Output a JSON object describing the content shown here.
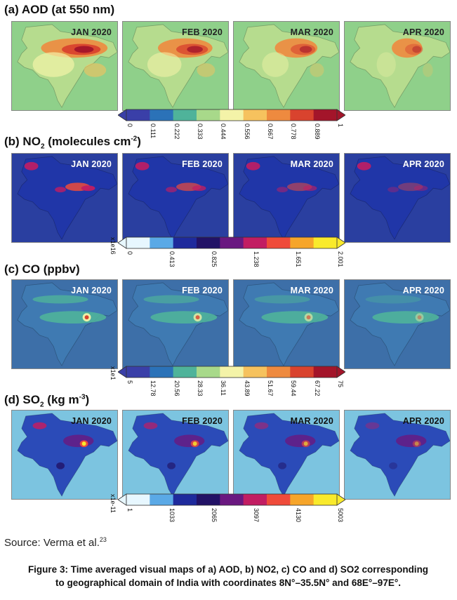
{
  "panels": [
    {
      "id": "aod",
      "title_prefix": "(a) AOD (at 550 nm)",
      "title_html": "",
      "bg": "#8fd08a",
      "label_color": "#222222",
      "months": [
        "JAN 2020",
        "FEB 2020",
        "MAR 2020",
        "APR 2020"
      ],
      "colorbar": {
        "colors": [
          "#3a3fa8",
          "#2b72b8",
          "#4fb39a",
          "#a8d98a",
          "#f4f3a8",
          "#f6c25e",
          "#ee8a3f",
          "#d9432e",
          "#a3152a"
        ],
        "ticks": [
          "0",
          "0.111",
          "0.222",
          "0.333",
          "0.444",
          "0.556",
          "0.667",
          "0.778",
          "0.889",
          "1"
        ],
        "unit": ""
      }
    },
    {
      "id": "no2",
      "title_prefix": "(b) NO",
      "title_sub": "2",
      "title_rest": " (molecules cm",
      "title_sup": "-2",
      "title_end": ")",
      "bg": "#2a3fa0",
      "label_color": "#ffffff",
      "months": [
        "JAN 2020",
        "FEB 2020",
        "MAR 2020",
        "APR 2020"
      ],
      "colorbar": {
        "colors": [
          "#e7f7ff",
          "#5aa9e6",
          "#1e2a9c",
          "#221266",
          "#6a1880",
          "#c21d62",
          "#ef4b3a",
          "#f6a52a",
          "#f9ea2c"
        ],
        "ticks": [
          "0",
          "0.413",
          "0.825",
          "1.238",
          "1.651",
          "2.001"
        ],
        "unit": "x1e16"
      }
    },
    {
      "id": "co",
      "title_prefix": "(c) CO (ppbv)",
      "bg": "#3d6fa8",
      "label_color": "#ffffff",
      "months": [
        "JAN 2020",
        "FEB 2020",
        "MAR 2020",
        "APR 2020"
      ],
      "colorbar": {
        "colors": [
          "#3a3fa8",
          "#2b72b8",
          "#4fb39a",
          "#a8d98a",
          "#f4f3a8",
          "#f6c25e",
          "#ee8a3f",
          "#d9432e",
          "#a3152a"
        ],
        "ticks": [
          "5",
          "12.78",
          "20.56",
          "28.33",
          "36.11",
          "43.89",
          "51.67",
          "59.44",
          "67.22",
          "75"
        ],
        "unit": "x1e1"
      }
    },
    {
      "id": "so2",
      "title_prefix": "(d) SO",
      "title_sub": "2",
      "title_rest": " (kg m",
      "title_sup": "-3",
      "title_end": ")",
      "bg": "#7cc4e0",
      "label_color": "#111111",
      "months": [
        "JAN 2020",
        "FEB 2020",
        "MAR 2020",
        "APR 2020"
      ],
      "colorbar": {
        "colors": [
          "#e7f7ff",
          "#5aa9e6",
          "#1e2a9c",
          "#221266",
          "#6a1880",
          "#c21d62",
          "#ef4b3a",
          "#f6a52a",
          "#f9ea2c"
        ],
        "ticks": [
          "1",
          "1033",
          "2065",
          "3097",
          "4130",
          "5003"
        ],
        "unit": "x1e-11"
      }
    }
  ],
  "source": {
    "text": "Source: Verma et al.",
    "ref": "23"
  },
  "caption": {
    "line1": "Figure 3: Time averaged visual maps of a) AOD, b) NO2, c) CO and d) SO2 corresponding",
    "line2": "to geographical domain of India with coordinates 8N°–35.5N° and 68E°–97E°."
  }
}
